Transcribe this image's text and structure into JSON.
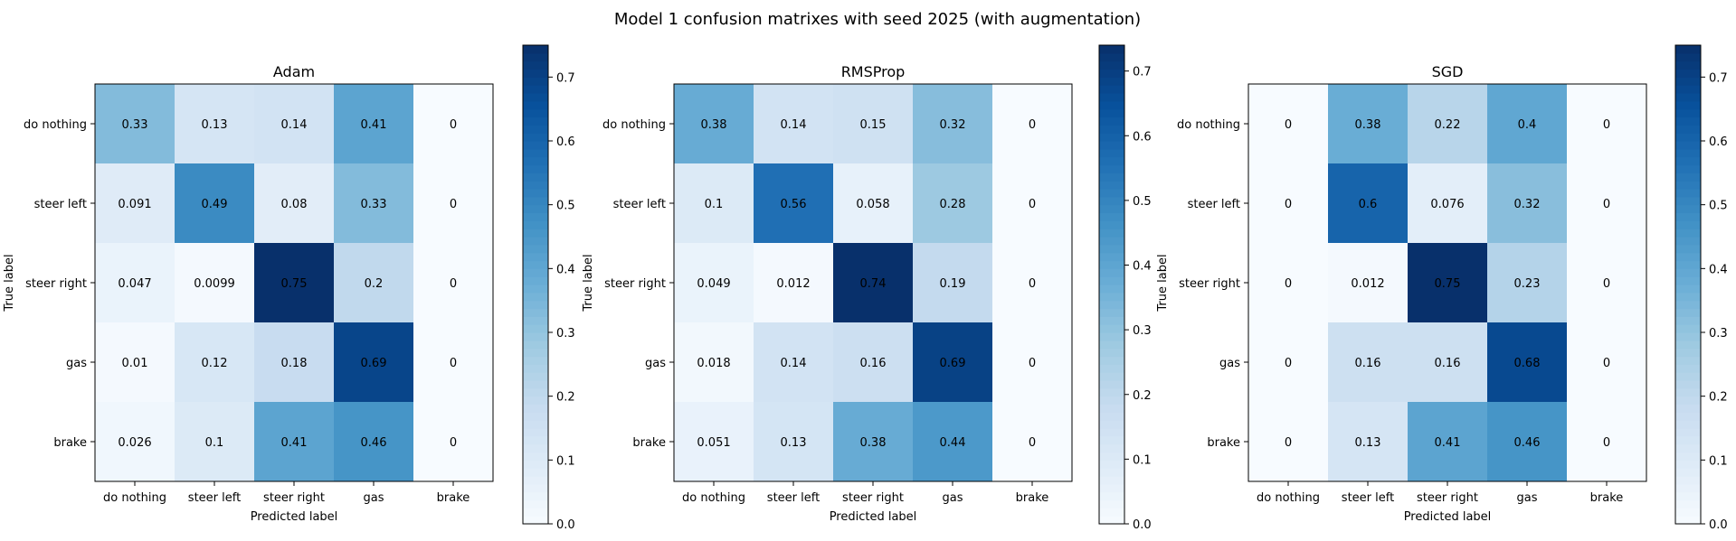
{
  "figure": {
    "title": "Model 1 confusion matrixes with seed 2025 (with augmentation)"
  },
  "chart_data": [
    {
      "type": "heatmap",
      "title": "Adam",
      "xlabel": "Predicted label",
      "ylabel": "True label",
      "x_categories": [
        "do nothing",
        "steer left",
        "steer right",
        "gas",
        "brake"
      ],
      "y_categories": [
        "do nothing",
        "steer left",
        "steer right",
        "gas",
        "brake"
      ],
      "values": [
        [
          0.33,
          0.13,
          0.14,
          0.41,
          0
        ],
        [
          0.091,
          0.49,
          0.08,
          0.33,
          0
        ],
        [
          0.047,
          0.0099,
          0.75,
          0.2,
          0
        ],
        [
          0.01,
          0.12,
          0.18,
          0.69,
          0
        ],
        [
          0.026,
          0.1,
          0.41,
          0.46,
          0
        ]
      ],
      "colorbar": {
        "range": [
          0,
          0.75
        ],
        "ticks": [
          "0.0",
          "0.1",
          "0.2",
          "0.3",
          "0.4",
          "0.5",
          "0.6",
          "0.7"
        ],
        "colormap": "Blues"
      }
    },
    {
      "type": "heatmap",
      "title": "RMSProp",
      "xlabel": "Predicted label",
      "ylabel": "True label",
      "x_categories": [
        "do nothing",
        "steer left",
        "steer right",
        "gas",
        "brake"
      ],
      "y_categories": [
        "do nothing",
        "steer left",
        "steer right",
        "gas",
        "brake"
      ],
      "values": [
        [
          0.38,
          0.14,
          0.15,
          0.32,
          0
        ],
        [
          0.1,
          0.56,
          0.058,
          0.28,
          0
        ],
        [
          0.049,
          0.012,
          0.74,
          0.19,
          0
        ],
        [
          0.018,
          0.14,
          0.16,
          0.69,
          0
        ],
        [
          0.051,
          0.13,
          0.38,
          0.44,
          0
        ]
      ],
      "colorbar": {
        "range": [
          0,
          0.74
        ],
        "ticks": [
          "0.0",
          "0.1",
          "0.2",
          "0.3",
          "0.4",
          "0.5",
          "0.6",
          "0.7"
        ],
        "colormap": "Blues"
      }
    },
    {
      "type": "heatmap",
      "title": "SGD",
      "xlabel": "Predicted label",
      "ylabel": "True label",
      "x_categories": [
        "do nothing",
        "steer left",
        "steer right",
        "gas",
        "brake"
      ],
      "y_categories": [
        "do nothing",
        "steer left",
        "steer right",
        "gas",
        "brake"
      ],
      "values": [
        [
          0,
          0.38,
          0.22,
          0.4,
          0
        ],
        [
          0,
          0.6,
          0.076,
          0.32,
          0
        ],
        [
          0,
          0.012,
          0.75,
          0.23,
          0
        ],
        [
          0,
          0.16,
          0.16,
          0.68,
          0
        ],
        [
          0,
          0.13,
          0.41,
          0.46,
          0
        ]
      ],
      "colorbar": {
        "range": [
          0,
          0.75
        ],
        "ticks": [
          "0.0",
          "0.1",
          "0.2",
          "0.3",
          "0.4",
          "0.5",
          "0.6",
          "0.7"
        ],
        "colormap": "Blues"
      }
    }
  ]
}
